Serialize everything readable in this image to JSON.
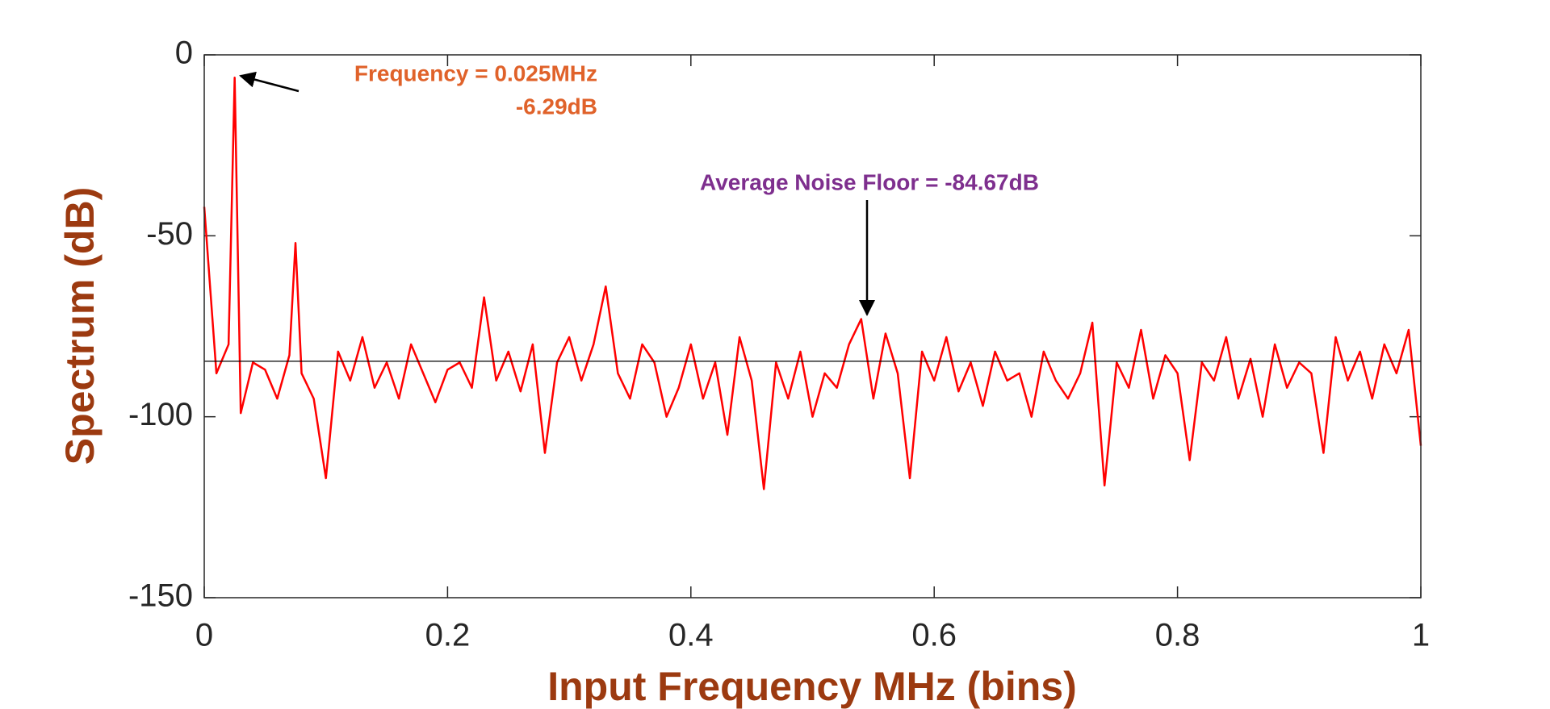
{
  "chart_data": {
    "type": "line",
    "xlabel": "Input Frequency MHz (bins)",
    "ylabel": "Spectrum (dB)",
    "annotations": [
      "Frequency = 0.025MHz",
      "-6.29dB",
      "Average Noise Floor = -84.67dB"
    ],
    "reference_line": -84.67,
    "xlim": [
      0,
      1
    ],
    "ylim": [
      -150,
      0
    ],
    "xticks": [
      0,
      0.2,
      0.4,
      0.6,
      0.8,
      1
    ],
    "yticks": [
      0,
      -50,
      -100,
      -150
    ],
    "x": [
      0,
      0.01,
      0.02,
      0.025,
      0.03,
      0.04,
      0.05,
      0.06,
      0.07,
      0.075,
      0.08,
      0.09,
      0.1,
      0.11,
      0.12,
      0.13,
      0.14,
      0.15,
      0.16,
      0.17,
      0.18,
      0.19,
      0.2,
      0.21,
      0.22,
      0.23,
      0.24,
      0.25,
      0.26,
      0.27,
      0.28,
      0.29,
      0.3,
      0.31,
      0.32,
      0.33,
      0.34,
      0.35,
      0.36,
      0.37,
      0.38,
      0.39,
      0.4,
      0.41,
      0.42,
      0.43,
      0.44,
      0.45,
      0.46,
      0.47,
      0.48,
      0.49,
      0.5,
      0.51,
      0.52,
      0.53,
      0.54,
      0.55,
      0.56,
      0.57,
      0.58,
      0.59,
      0.6,
      0.61,
      0.62,
      0.63,
      0.64,
      0.65,
      0.66,
      0.67,
      0.68,
      0.69,
      0.7,
      0.71,
      0.72,
      0.73,
      0.74,
      0.75,
      0.76,
      0.77,
      0.78,
      0.79,
      0.8,
      0.81,
      0.82,
      0.83,
      0.84,
      0.85,
      0.86,
      0.87,
      0.88,
      0.89,
      0.9,
      0.91,
      0.92,
      0.93,
      0.94,
      0.95,
      0.96,
      0.97,
      0.98,
      0.99,
      1
    ],
    "series": [
      {
        "color": "#ff0000",
        "values": [
          -42,
          -88,
          -80,
          -6.29,
          -99,
          -85,
          -87,
          -95,
          -83,
          -52,
          -88,
          -95,
          -117,
          -82,
          -90,
          -78,
          -92,
          -85,
          -95,
          -80,
          -88,
          -96,
          -87,
          -85,
          -92,
          -67,
          -90,
          -82,
          -93,
          -80,
          -110,
          -85,
          -78,
          -90,
          -80,
          -64,
          -88,
          -95,
          -80,
          -85,
          -100,
          -92,
          -80,
          -95,
          -85,
          -105,
          -78,
          -90,
          -120,
          -85,
          -95,
          -82,
          -100,
          -88,
          -92,
          -80,
          -73,
          -95,
          -77,
          -88,
          -117,
          -82,
          -90,
          -78,
          -93,
          -85,
          -97,
          -82,
          -90,
          -88,
          -100,
          -82,
          -90,
          -95,
          -88,
          -74,
          -119,
          -85,
          -92,
          -76,
          -95,
          -83,
          -88,
          -112,
          -85,
          -90,
          -78,
          -95,
          -84,
          -100,
          -80,
          -92,
          -85,
          -88,
          -110,
          -78,
          -90,
          -82,
          -95,
          -80,
          -88,
          -76,
          -108
        ]
      }
    ]
  }
}
